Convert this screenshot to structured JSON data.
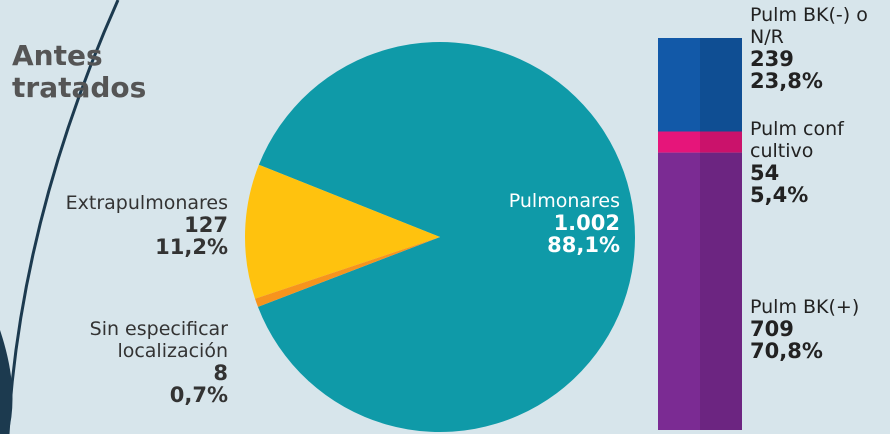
{
  "chart_data": [
    {
      "type": "pie",
      "title": "Antes tratados",
      "categories": [
        "Pulmonares",
        "Extrapulmonares",
        "Sin especificar localización"
      ],
      "values": [
        1002,
        127,
        8
      ],
      "value_labels": [
        "1.002",
        "127",
        "8"
      ],
      "percents": [
        88.1,
        11.2,
        0.7
      ],
      "percent_labels": [
        "88,1%",
        "11,2%",
        "0,7%"
      ],
      "colors": [
        "#0f9aa8",
        "#ffc20e",
        "#f7941d"
      ]
    },
    {
      "type": "stacked-bar",
      "series": [
        {
          "name": "Pulm BK(-) o N/R",
          "color": "#1259a8",
          "values": [
            239
          ],
          "percents": [
            23.8
          ],
          "percent_labels": [
            "23,8%"
          ]
        },
        {
          "name": "Pulm conf cultivo",
          "color": "#e6157a",
          "values": [
            54
          ],
          "percents": [
            5.4
          ],
          "percent_labels": [
            "5,4%"
          ]
        },
        {
          "name": "Pulm BK(+)",
          "color": "#7b2b93",
          "values": [
            709
          ],
          "percents": [
            70.8
          ],
          "percent_labels": [
            "70,8%"
          ]
        }
      ]
    }
  ]
}
